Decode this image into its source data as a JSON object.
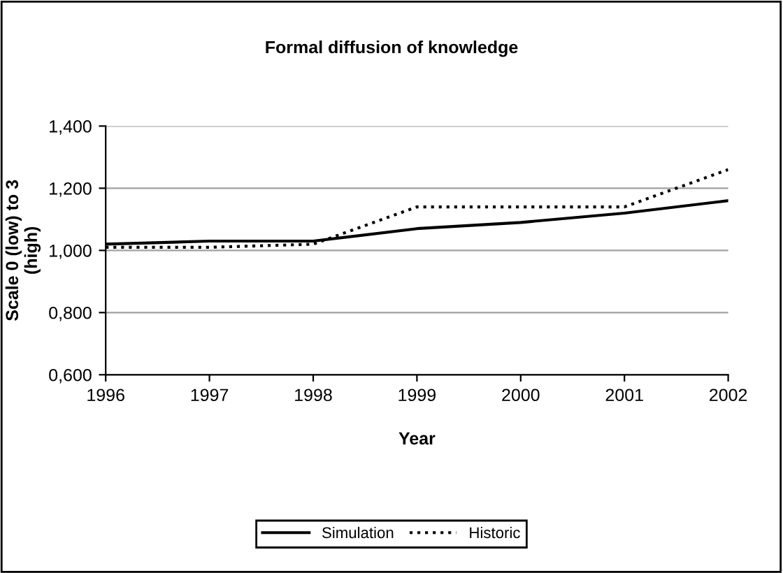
{
  "chart_data": {
    "type": "line",
    "title": "Formal diffusion of knowledge",
    "xlabel": "Year",
    "ylabel": "Scale 0 (low) to 3\n(high)",
    "x": [
      1996,
      1997,
      1998,
      1999,
      2000,
      2001,
      2002
    ],
    "series": [
      {
        "name": "Simulation",
        "color": "#000000",
        "line_style": "solid",
        "values": [
          1.02,
          1.03,
          1.03,
          1.07,
          1.09,
          1.12,
          1.16
        ]
      },
      {
        "name": "Historic",
        "color": "#000000",
        "line_style": "dotted",
        "values": [
          1.01,
          1.01,
          1.02,
          1.14,
          1.14,
          1.14,
          1.26
        ]
      }
    ],
    "xlim": [
      1996,
      2002
    ],
    "xticks": [
      1996,
      1997,
      1998,
      1999,
      2000,
      2001,
      2002
    ],
    "ylim": [
      0.6,
      1.4
    ],
    "yticks": [
      {
        "value": 0.6,
        "label": "0,600"
      },
      {
        "value": 0.8,
        "label": "0,800"
      },
      {
        "value": 1.0,
        "label": "1,000"
      },
      {
        "value": 1.2,
        "label": "1,200"
      },
      {
        "value": 1.4,
        "label": "1,400"
      }
    ],
    "grid": "y",
    "legend": "bottom",
    "marker": "none"
  }
}
